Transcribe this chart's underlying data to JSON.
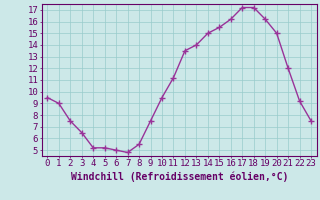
{
  "x": [
    0,
    1,
    2,
    3,
    4,
    5,
    6,
    7,
    8,
    9,
    10,
    11,
    12,
    13,
    14,
    15,
    16,
    17,
    18,
    19,
    20,
    21,
    22,
    23
  ],
  "y": [
    9.5,
    9.0,
    7.5,
    6.5,
    5.2,
    5.2,
    5.0,
    4.8,
    5.5,
    7.5,
    9.5,
    11.2,
    13.5,
    14.0,
    15.0,
    15.5,
    16.2,
    17.2,
    17.2,
    16.2,
    15.0,
    12.0,
    9.2,
    7.5
  ],
  "line_color": "#993399",
  "marker": "+",
  "marker_color": "#993399",
  "bg_color": "#cce8e8",
  "grid_color": "#99cccc",
  "xlabel": "Windchill (Refroidissement éolien,°C)",
  "xlim": [
    -0.5,
    23.5
  ],
  "ylim": [
    4.5,
    17.5
  ],
  "yticks": [
    5,
    6,
    7,
    8,
    9,
    10,
    11,
    12,
    13,
    14,
    15,
    16,
    17
  ],
  "xticks": [
    0,
    1,
    2,
    3,
    4,
    5,
    6,
    7,
    8,
    9,
    10,
    11,
    12,
    13,
    14,
    15,
    16,
    17,
    18,
    19,
    20,
    21,
    22,
    23
  ],
  "tick_label_color": "#660066",
  "axis_color": "#660066",
  "xlabel_color": "#660066",
  "xlabel_fontsize": 7,
  "tick_fontsize": 6.5,
  "linewidth": 1.0,
  "markersize": 4
}
